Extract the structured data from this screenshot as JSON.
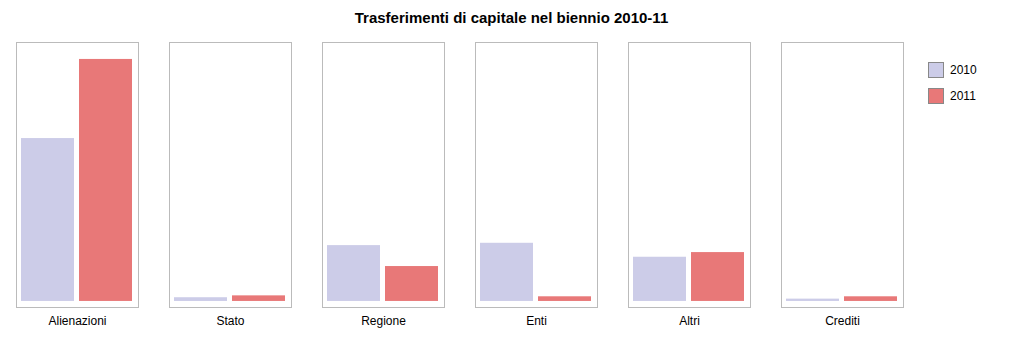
{
  "chart_data": {
    "type": "bar",
    "title": "Trasferimenti di capitale nel biennio 2010-11",
    "categories": [
      "Alienazioni",
      "Stato",
      "Regione",
      "Enti",
      "Altri",
      "Crediti"
    ],
    "series": [
      {
        "name": "2010",
        "color": "#cccce8",
        "values": [
          3500,
          80,
          1200,
          1250,
          950,
          50
        ]
      },
      {
        "name": "2011",
        "color": "#e87878",
        "values": [
          5200,
          120,
          750,
          100,
          1050,
          100
        ]
      }
    ],
    "ylim": [
      -130,
      5564
    ],
    "grid": false,
    "legend": "right",
    "tick_labels": "x"
  }
}
